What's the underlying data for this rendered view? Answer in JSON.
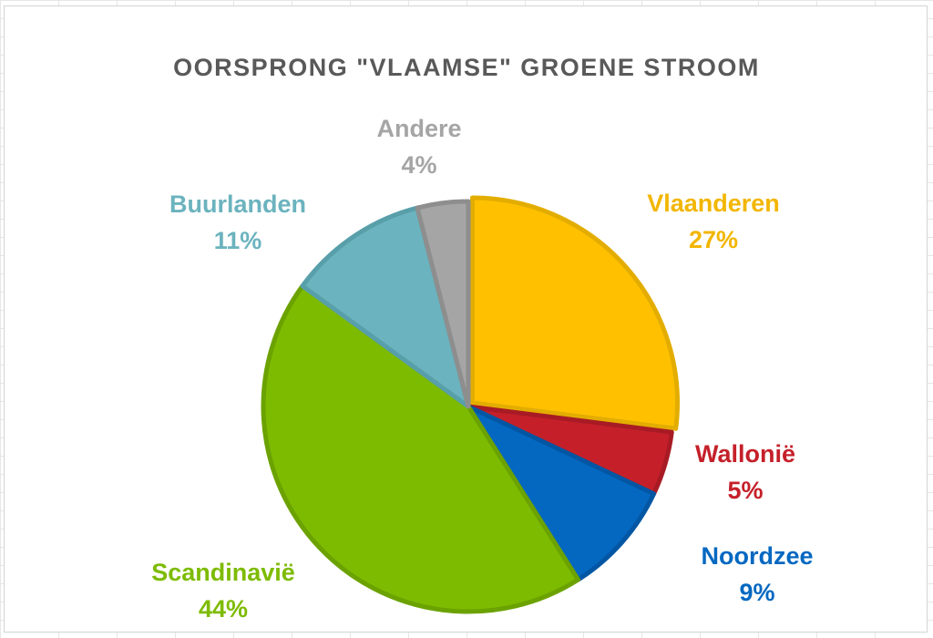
{
  "chart_data": {
    "type": "pie",
    "title": "OORSPRONG \"VLAAMSE\" GROENE STROOM",
    "slices": [
      {
        "name": "Vlaanderen",
        "value": 27,
        "label": "27%",
        "color": "#FFC000",
        "stroke": "#E3AD00"
      },
      {
        "name": "Wallonië",
        "value": 5,
        "label": "5%",
        "color": "#C5202A",
        "stroke": "#A81B24"
      },
      {
        "name": "Noordzee",
        "value": 9,
        "label": "9%",
        "color": "#0468C1",
        "stroke": "#0356A3"
      },
      {
        "name": "Scandinavië",
        "value": 44,
        "label": "44%",
        "color": "#7DBB00",
        "stroke": "#6BA200"
      },
      {
        "name": "Buurlanden",
        "value": 11,
        "label": "11%",
        "color": "#6BB3BE",
        "stroke": "#589FAA"
      },
      {
        "name": "Andere",
        "value": 4,
        "label": "4%",
        "color": "#A5A5A5",
        "stroke": "#8E8E8E"
      }
    ],
    "legend": "none",
    "data_labels": "outside"
  }
}
